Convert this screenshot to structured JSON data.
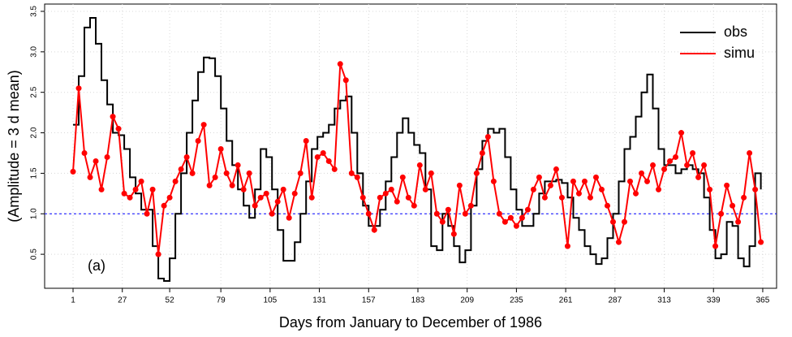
{
  "chart_data": {
    "type": "line",
    "xlabel": "Days from January to December of 1986",
    "ylabel": "(Amplitude = 3 d mean)",
    "annotation": "(a)",
    "x": [
      1,
      4,
      7,
      10,
      13,
      16,
      19,
      22,
      25,
      28,
      31,
      34,
      37,
      40,
      43,
      46,
      49,
      52,
      55,
      58,
      61,
      64,
      67,
      70,
      73,
      76,
      79,
      82,
      85,
      88,
      91,
      94,
      97,
      100,
      103,
      106,
      109,
      112,
      115,
      118,
      121,
      124,
      127,
      130,
      133,
      136,
      139,
      142,
      145,
      148,
      151,
      154,
      157,
      160,
      163,
      166,
      169,
      172,
      175,
      178,
      181,
      184,
      187,
      190,
      193,
      196,
      199,
      202,
      205,
      208,
      211,
      214,
      217,
      220,
      223,
      226,
      229,
      232,
      235,
      238,
      241,
      244,
      247,
      250,
      253,
      256,
      259,
      262,
      265,
      268,
      271,
      274,
      277,
      280,
      283,
      286,
      289,
      292,
      295,
      298,
      301,
      304,
      307,
      310,
      313,
      316,
      319,
      322,
      325,
      328,
      331,
      334,
      337,
      340,
      343,
      346,
      349,
      352,
      355,
      358,
      361,
      364
    ],
    "series": [
      {
        "name": "obs",
        "color": "#000000",
        "step": true,
        "markers": false,
        "values": [
          2.1,
          2.7,
          3.3,
          3.42,
          3.1,
          2.65,
          2.35,
          2.0,
          1.97,
          1.8,
          1.45,
          1.25,
          1.05,
          1.05,
          0.6,
          0.2,
          0.17,
          0.45,
          1.0,
          1.5,
          2.0,
          2.4,
          2.75,
          2.93,
          2.92,
          2.7,
          2.3,
          1.9,
          1.6,
          1.3,
          1.1,
          0.95,
          1.3,
          1.8,
          1.7,
          1.3,
          0.8,
          0.42,
          0.42,
          0.65,
          1.0,
          1.4,
          1.8,
          1.95,
          2.0,
          2.1,
          2.3,
          2.4,
          2.45,
          2.0,
          1.5,
          1.1,
          0.85,
          0.85,
          1.05,
          1.4,
          1.7,
          2.0,
          2.18,
          2.0,
          1.85,
          1.75,
          1.3,
          0.6,
          0.55,
          1.0,
          0.85,
          0.6,
          0.4,
          0.55,
          1.1,
          1.55,
          1.9,
          2.05,
          2.0,
          2.05,
          1.7,
          1.3,
          1.05,
          0.85,
          0.85,
          1.0,
          1.25,
          1.4,
          1.4,
          1.42,
          1.38,
          1.2,
          0.95,
          0.8,
          0.6,
          0.5,
          0.38,
          0.45,
          0.7,
          1.0,
          1.4,
          1.8,
          1.95,
          2.2,
          2.5,
          2.72,
          2.3,
          1.8,
          1.6,
          1.6,
          1.5,
          1.55,
          1.6,
          1.55,
          1.5,
          1.2,
          0.8,
          0.45,
          0.5,
          0.9,
          0.85,
          0.45,
          0.35,
          0.6,
          1.5,
          1.3
        ]
      },
      {
        "name": "simu",
        "color": "#ff0000",
        "step": false,
        "markers": true,
        "values": [
          1.52,
          2.55,
          1.75,
          1.45,
          1.65,
          1.3,
          1.7,
          2.2,
          2.05,
          1.25,
          1.2,
          1.3,
          1.4,
          1.0,
          1.3,
          0.5,
          1.1,
          1.2,
          1.4,
          1.55,
          1.7,
          1.5,
          1.9,
          2.1,
          1.35,
          1.45,
          1.8,
          1.5,
          1.35,
          1.6,
          1.3,
          1.5,
          1.1,
          1.2,
          1.25,
          1.0,
          1.15,
          1.3,
          0.95,
          1.25,
          1.5,
          1.9,
          1.2,
          1.7,
          1.75,
          1.65,
          1.55,
          2.85,
          2.65,
          1.5,
          1.45,
          1.2,
          1.0,
          0.8,
          1.2,
          1.25,
          1.3,
          1.15,
          1.45,
          1.2,
          1.1,
          1.6,
          1.3,
          1.5,
          1.0,
          0.9,
          1.05,
          0.75,
          1.35,
          1.0,
          1.1,
          1.5,
          1.75,
          1.95,
          1.4,
          1.0,
          0.9,
          0.95,
          0.85,
          0.95,
          1.05,
          1.3,
          1.45,
          1.2,
          1.35,
          1.55,
          1.2,
          0.6,
          1.4,
          1.25,
          1.4,
          1.2,
          1.45,
          1.3,
          1.1,
          0.9,
          0.65,
          0.9,
          1.4,
          1.25,
          1.5,
          1.4,
          1.6,
          1.3,
          1.55,
          1.65,
          1.7,
          2.0,
          1.6,
          1.75,
          1.45,
          1.6,
          1.3,
          0.6,
          1.0,
          1.35,
          1.1,
          0.9,
          1.2,
          1.75,
          1.3,
          0.65
        ]
      }
    ],
    "hline": {
      "value": 1,
      "color": "#0000ff"
    },
    "xlim": [
      -14,
      372.3
    ],
    "xticks": [
      1,
      27,
      52,
      79,
      105,
      131,
      157,
      183,
      209,
      235,
      261,
      287,
      313,
      339,
      365
    ],
    "ylim": [
      0.08,
      3.59
    ],
    "yticks": [
      0.5,
      {
        "value": 1,
        "label": "1.0"
      },
      1.5,
      {
        "value": 2,
        "label": "2.0"
      },
      2.5,
      {
        "value": 3,
        "label": "3.0"
      },
      3.5
    ],
    "grid": true,
    "legend": "upper right"
  }
}
